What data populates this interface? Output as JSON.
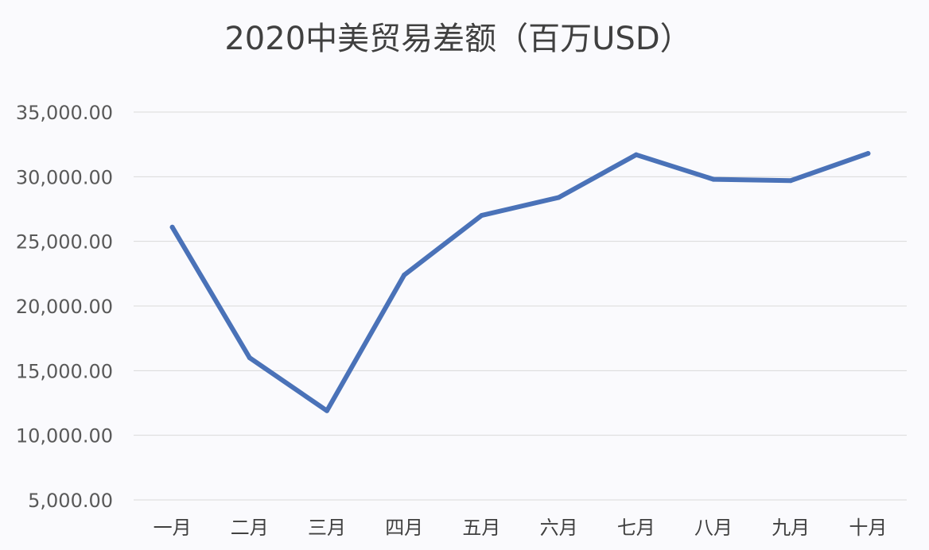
{
  "chart_data": {
    "type": "line",
    "title": "2020中美贸易差额（百万USD）",
    "xlabel": "",
    "ylabel": "",
    "categories": [
      "一月",
      "二月",
      "三月",
      "四月",
      "五月",
      "六月",
      "七月",
      "八月",
      "九月",
      "十月"
    ],
    "series": [
      {
        "values": [
          26100,
          16000,
          11900,
          22400,
          27000,
          28400,
          31700,
          29800,
          29700,
          31800
        ]
      }
    ],
    "ylim": [
      5000,
      35000
    ],
    "yticks": [
      "5,000.00",
      "10,000.00",
      "15,000.00",
      "20,000.00",
      "25,000.00",
      "30,000.00",
      "35,000.00"
    ],
    "ytick_values": [
      5000,
      10000,
      15000,
      20000,
      25000,
      30000,
      35000
    ],
    "grid": true,
    "legend": "none",
    "line_color": "#4a72b8"
  }
}
